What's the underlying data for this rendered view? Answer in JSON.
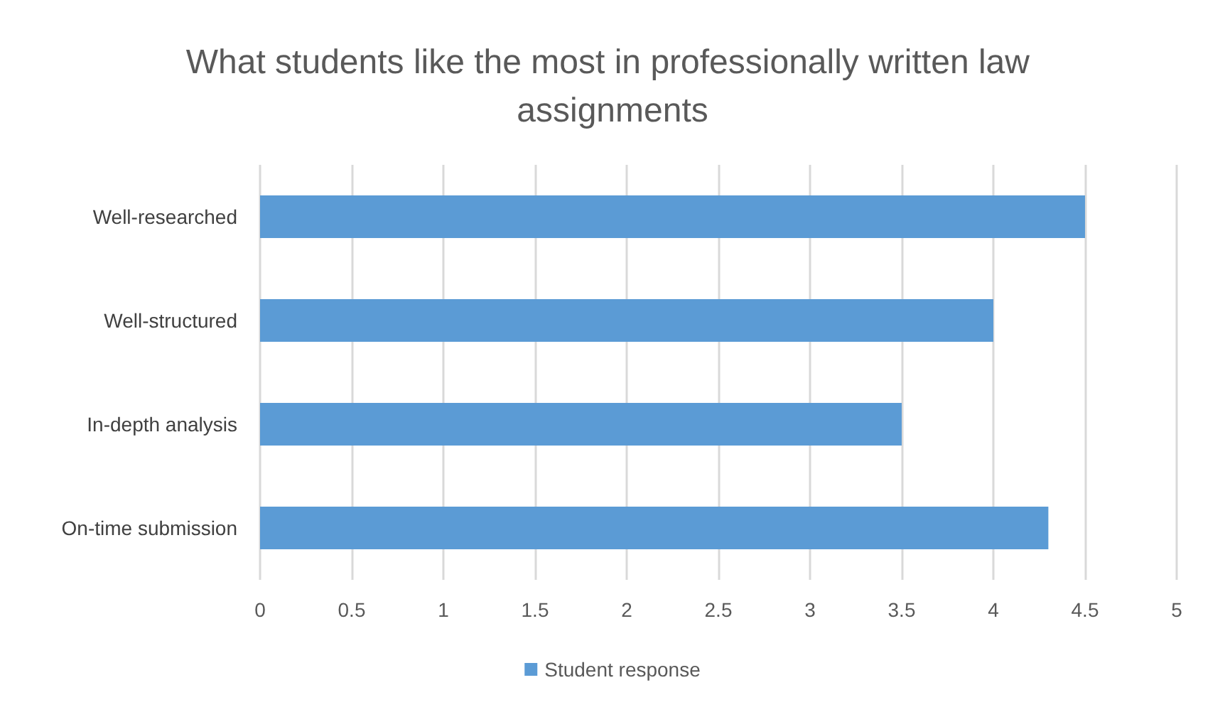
{
  "chart_data": {
    "type": "bar",
    "orientation": "horizontal",
    "title": "What students like the most in professionally written law assignments",
    "categories": [
      "Well-researched",
      "Well-structured",
      "In-depth analysis",
      "On-time submission"
    ],
    "series": [
      {
        "name": "Student response",
        "color": "#5b9bd5",
        "values": [
          4.5,
          4,
          3.5,
          4.3
        ]
      }
    ],
    "xlim": [
      0,
      5
    ],
    "xticks": [
      0,
      0.5,
      1,
      1.5,
      2,
      2.5,
      3,
      3.5,
      4,
      4.5,
      5
    ],
    "grid": "x",
    "legend": "bottom"
  }
}
